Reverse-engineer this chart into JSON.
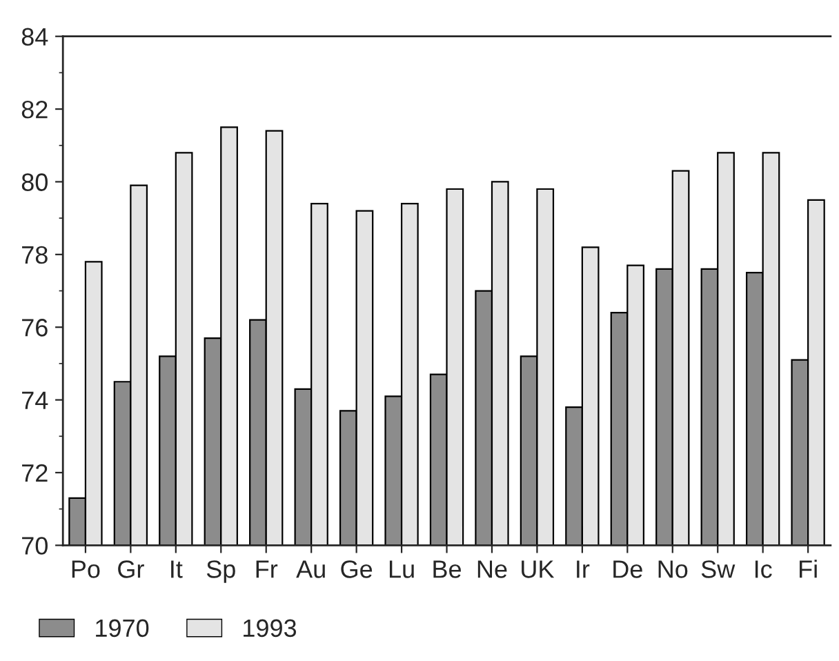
{
  "chart_data": {
    "type": "bar",
    "categories": [
      "Po",
      "Gr",
      "It",
      "Sp",
      "Fr",
      "Au",
      "Ge",
      "Lu",
      "Be",
      "Ne",
      "UK",
      "Ir",
      "De",
      "No",
      "Sw",
      "Ic",
      "Fi"
    ],
    "series": [
      {
        "name": "1970",
        "color": "#8c8c8c",
        "values": [
          71.3,
          74.5,
          75.2,
          75.7,
          76.2,
          74.3,
          73.7,
          74.1,
          74.7,
          77.0,
          75.2,
          73.8,
          76.4,
          77.6,
          77.6,
          77.5,
          75.1
        ]
      },
      {
        "name": "1993",
        "color": "#e4e4e4",
        "values": [
          77.8,
          79.9,
          80.8,
          81.5,
          81.4,
          79.4,
          79.2,
          79.4,
          79.8,
          80.0,
          79.8,
          78.2,
          77.7,
          80.3,
          80.8,
          80.8,
          79.5
        ]
      }
    ],
    "ylim": [
      70,
      84
    ],
    "yticks": [
      70,
      72,
      74,
      76,
      78,
      80,
      82,
      84
    ],
    "grid": false,
    "legend": "bottom left"
  }
}
